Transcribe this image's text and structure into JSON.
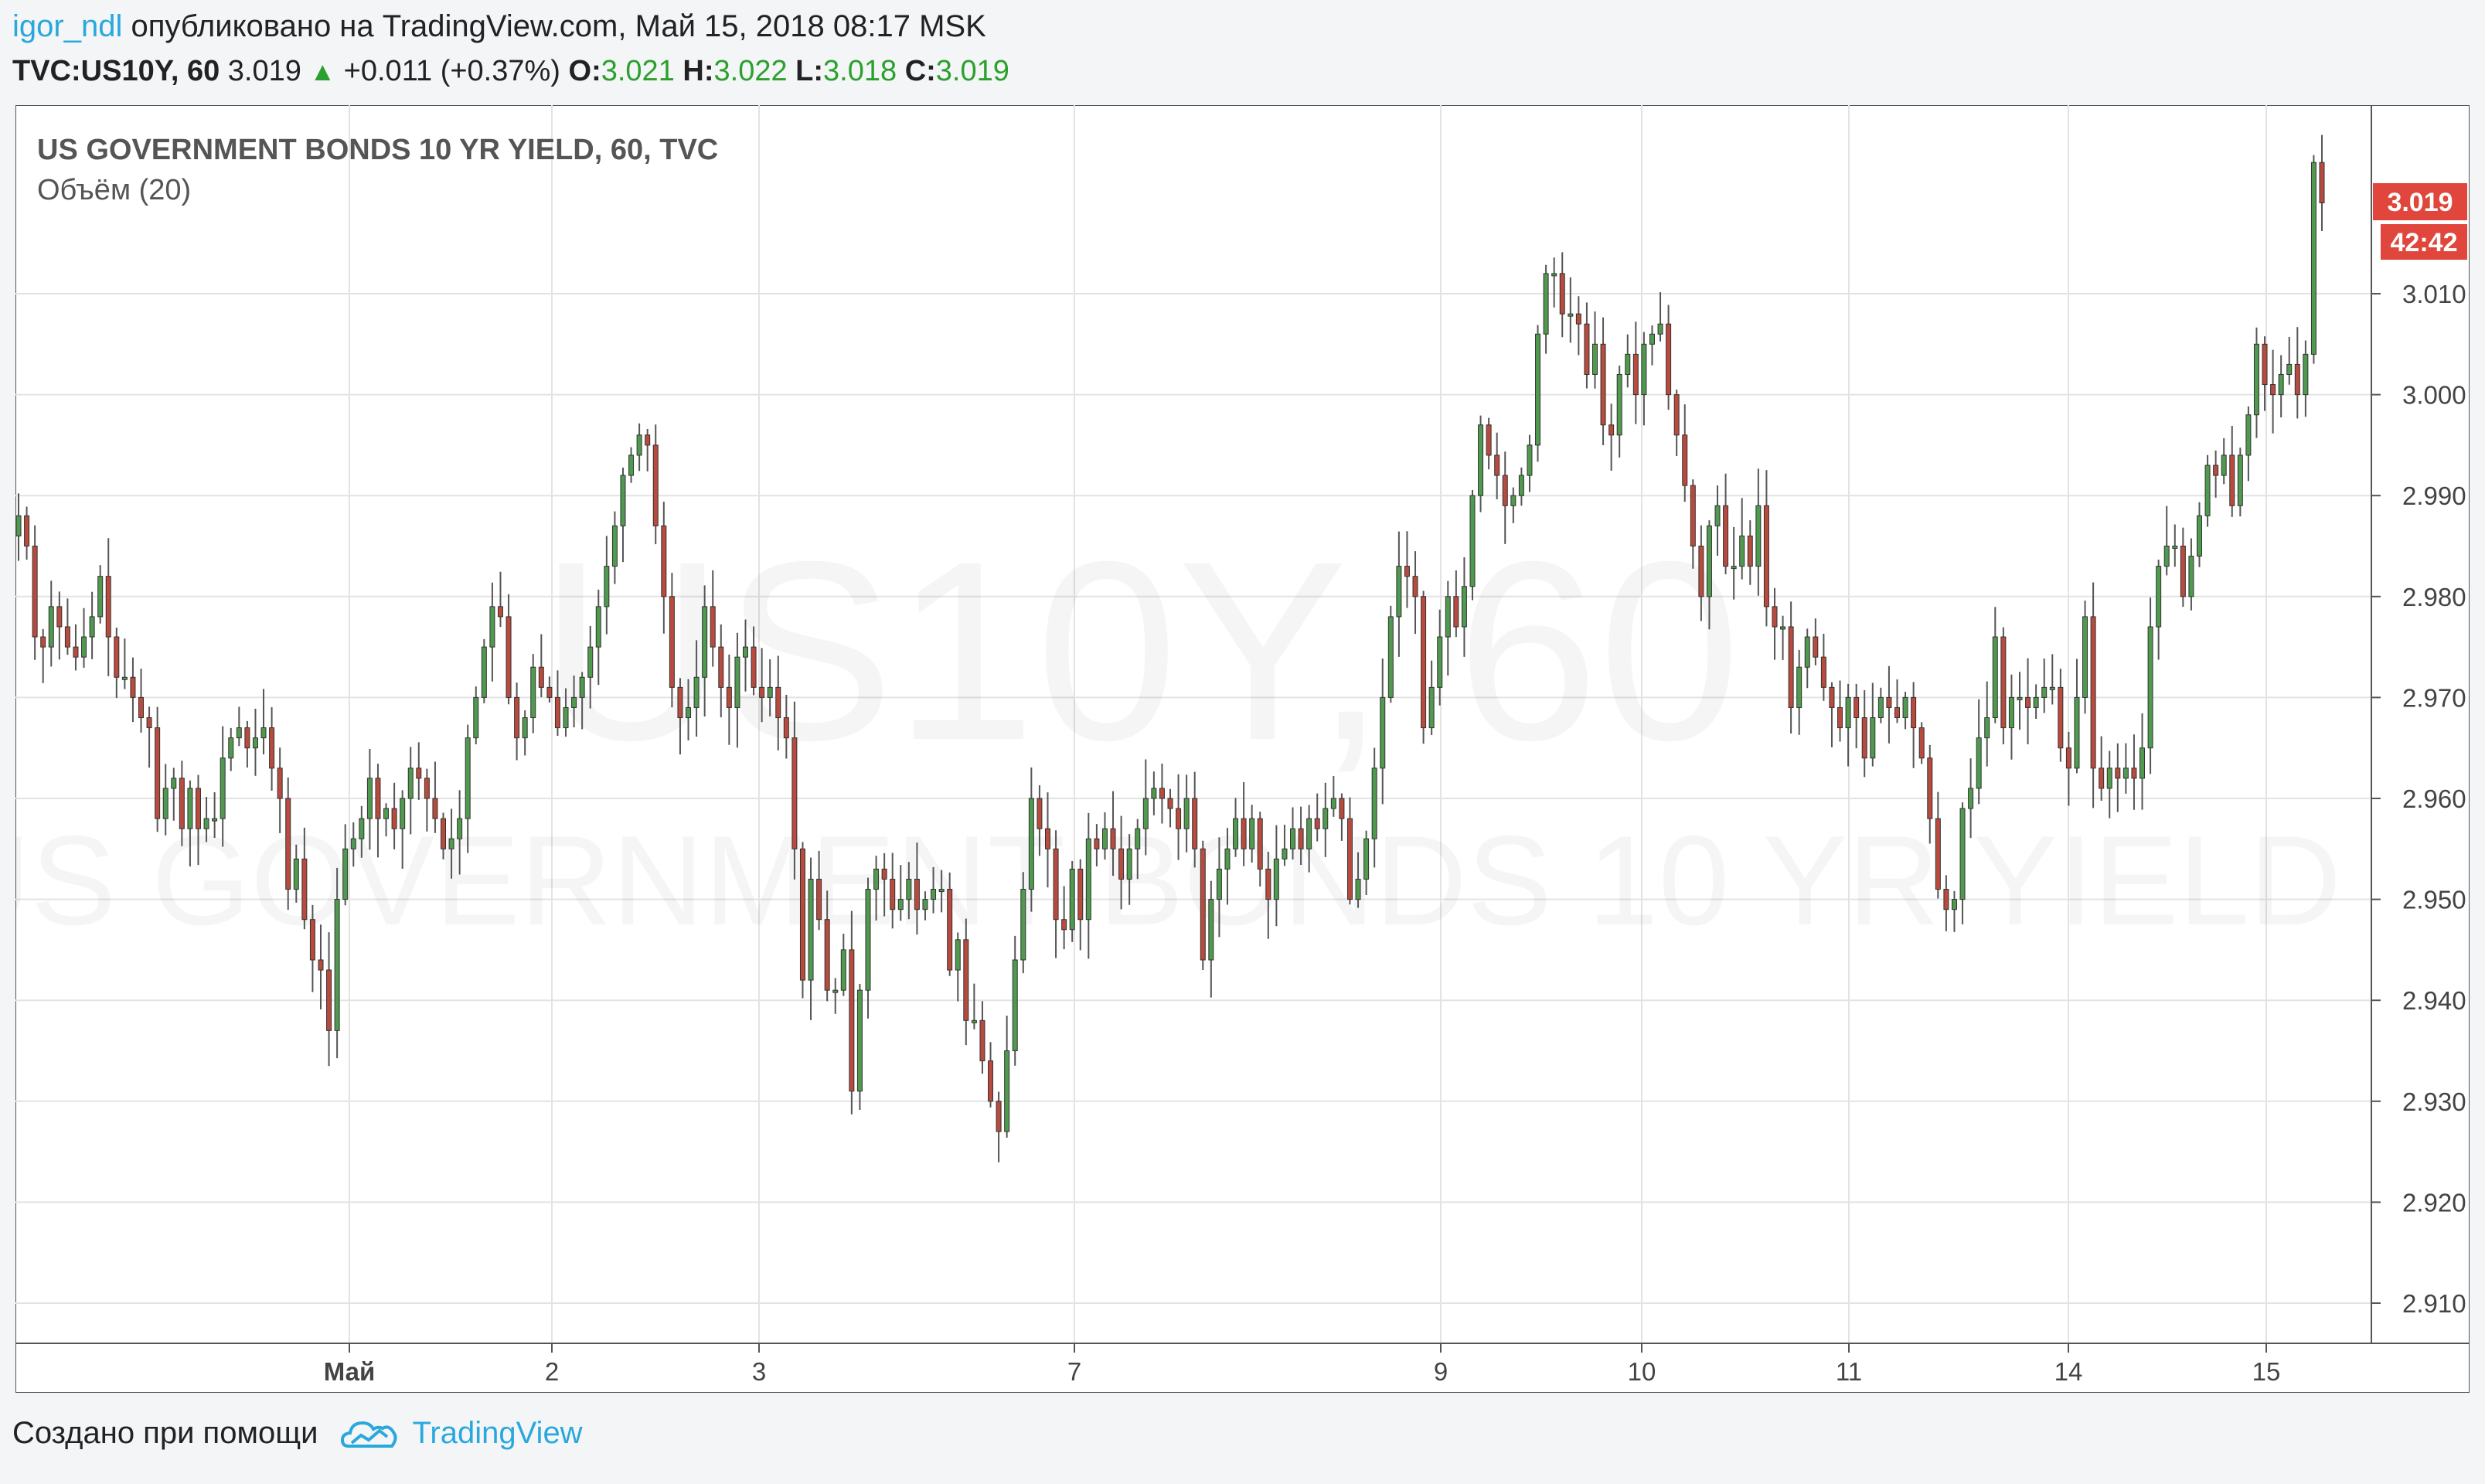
{
  "header": {
    "author": "igor_ndl",
    "published_text": "опубликовано на TradingView.com, Май 15, 2018 08:17 MSK"
  },
  "ohlc": {
    "symbol": "TVC:US10Y, 60",
    "price": "3.019",
    "change": "+0.011 (+0.37%)",
    "o_label": "O:",
    "o": "3.021",
    "h_label": "H:",
    "h": "3.022",
    "l_label": "L:",
    "l": "3.018",
    "c_label": "C:",
    "c": "3.019"
  },
  "chart_title": "US GOVERNMENT BONDS 10 YR YIELD, 60, TVC",
  "volume_label": "Объём (20)",
  "watermark": {
    "line1": "US10Y, 60",
    "line2": "US GOVERNMENT BONDS 10 YR YIELD"
  },
  "price_badge": "3.019",
  "timer_badge": "42:42",
  "colors": {
    "up": "#4f9a4f",
    "down": "#b94a3e",
    "badge": "#e0463b",
    "grid": "#e3e3e3",
    "accent": "#2aa8dd"
  },
  "footer": {
    "created_text": "Создано при помощи",
    "brand": "TradingView",
    "logo_icon": "tradingview-cloud-icon"
  },
  "chart_data": {
    "type": "candlestick",
    "title": "US GOVERNMENT BONDS 10 YR YIELD, 60, TVC",
    "ylim": [
      2.904,
      3.034
    ],
    "y_ticks": [
      "3.010",
      "3.000",
      "2.990",
      "2.980",
      "2.970",
      "2.960",
      "2.950",
      "2.940",
      "2.930",
      "2.920",
      "2.910"
    ],
    "x_tick_labels": [
      "Май",
      "2",
      "3",
      "7",
      "9",
      "10",
      "11",
      "14",
      "15"
    ],
    "grid": true,
    "closes": [
      2.988,
      2.985,
      2.976,
      2.975,
      2.979,
      2.977,
      2.975,
      2.974,
      2.976,
      2.978,
      2.982,
      2.976,
      2.972,
      2.972,
      2.97,
      2.968,
      2.967,
      2.958,
      2.961,
      2.962,
      2.957,
      2.961,
      2.957,
      2.958,
      2.958,
      2.964,
      2.966,
      2.967,
      2.965,
      2.966,
      2.967,
      2.963,
      2.96,
      2.951,
      2.954,
      2.948,
      2.944,
      2.943,
      2.937,
      2.95,
      2.955,
      2.956,
      2.958,
      2.962,
      2.958,
      2.959,
      2.957,
      2.96,
      2.963,
      2.962,
      2.96,
      2.958,
      2.955,
      2.956,
      2.958,
      2.966,
      2.97,
      2.975,
      2.979,
      2.978,
      2.97,
      2.966,
      2.968,
      2.973,
      2.971,
      2.97,
      2.967,
      2.969,
      2.97,
      2.972,
      2.975,
      2.979,
      2.983,
      2.987,
      2.992,
      2.994,
      2.996,
      2.995,
      2.987,
      2.98,
      2.971,
      2.968,
      2.969,
      2.972,
      2.979,
      2.975,
      2.971,
      2.969,
      2.974,
      2.975,
      2.971,
      2.97,
      2.971,
      2.968,
      2.966,
      2.955,
      2.942,
      2.952,
      2.948,
      2.941,
      2.941,
      2.945,
      2.931,
      2.941,
      2.951,
      2.953,
      2.952,
      2.949,
      2.95,
      2.952,
      2.949,
      2.95,
      2.951,
      2.951,
      2.943,
      2.946,
      2.938,
      2.938,
      2.934,
      2.93,
      2.927,
      2.935,
      2.944,
      2.951,
      2.96,
      2.957,
      2.955,
      2.948,
      2.947,
      2.953,
      2.948,
      2.956,
      2.955,
      2.957,
      2.955,
      2.952,
      2.955,
      2.957,
      2.96,
      2.961,
      2.96,
      2.959,
      2.957,
      2.96,
      2.955,
      2.944,
      2.95,
      2.953,
      2.955,
      2.958,
      2.955,
      2.958,
      2.953,
      2.95,
      2.954,
      2.955,
      2.957,
      2.955,
      2.958,
      2.957,
      2.959,
      2.96,
      2.958,
      2.95,
      2.952,
      2.956,
      2.963,
      2.97,
      2.978,
      2.983,
      2.982,
      2.98,
      2.967,
      2.971,
      2.976,
      2.98,
      2.977,
      2.981,
      2.99,
      2.997,
      2.994,
      2.992,
      2.989,
      2.99,
      2.992,
      2.995,
      3.006,
      3.012,
      3.012,
      3.008,
      3.008,
      3.007,
      3.002,
      3.005,
      2.997,
      2.996,
      3.002,
      3.004,
      3.0,
      3.005,
      3.006,
      3.007,
      3.0,
      2.996,
      2.991,
      2.985,
      2.98,
      2.987,
      2.989,
      2.983,
      2.983,
      2.986,
      2.983,
      2.989,
      2.979,
      2.977,
      2.977,
      2.969,
      2.973,
      2.976,
      2.974,
      2.971,
      2.969,
      2.967,
      2.97,
      2.968,
      2.964,
      2.968,
      2.97,
      2.969,
      2.968,
      2.97,
      2.967,
      2.964,
      2.958,
      2.951,
      2.949,
      2.95,
      2.959,
      2.961,
      2.966,
      2.968,
      2.976,
      2.967,
      2.97,
      2.97,
      2.969,
      2.97,
      2.971,
      2.971,
      2.965,
      2.963,
      2.97,
      2.978,
      2.963,
      2.961,
      2.963,
      2.962,
      2.963,
      2.962,
      2.965,
      2.977,
      2.983,
      2.985,
      2.985,
      2.98,
      2.984,
      2.988,
      2.993,
      2.992,
      2.994,
      2.989,
      2.994,
      2.998,
      3.005,
      3.001,
      3.0,
      3.002,
      3.003,
      3.0,
      3.004,
      3.023,
      3.019
    ]
  }
}
